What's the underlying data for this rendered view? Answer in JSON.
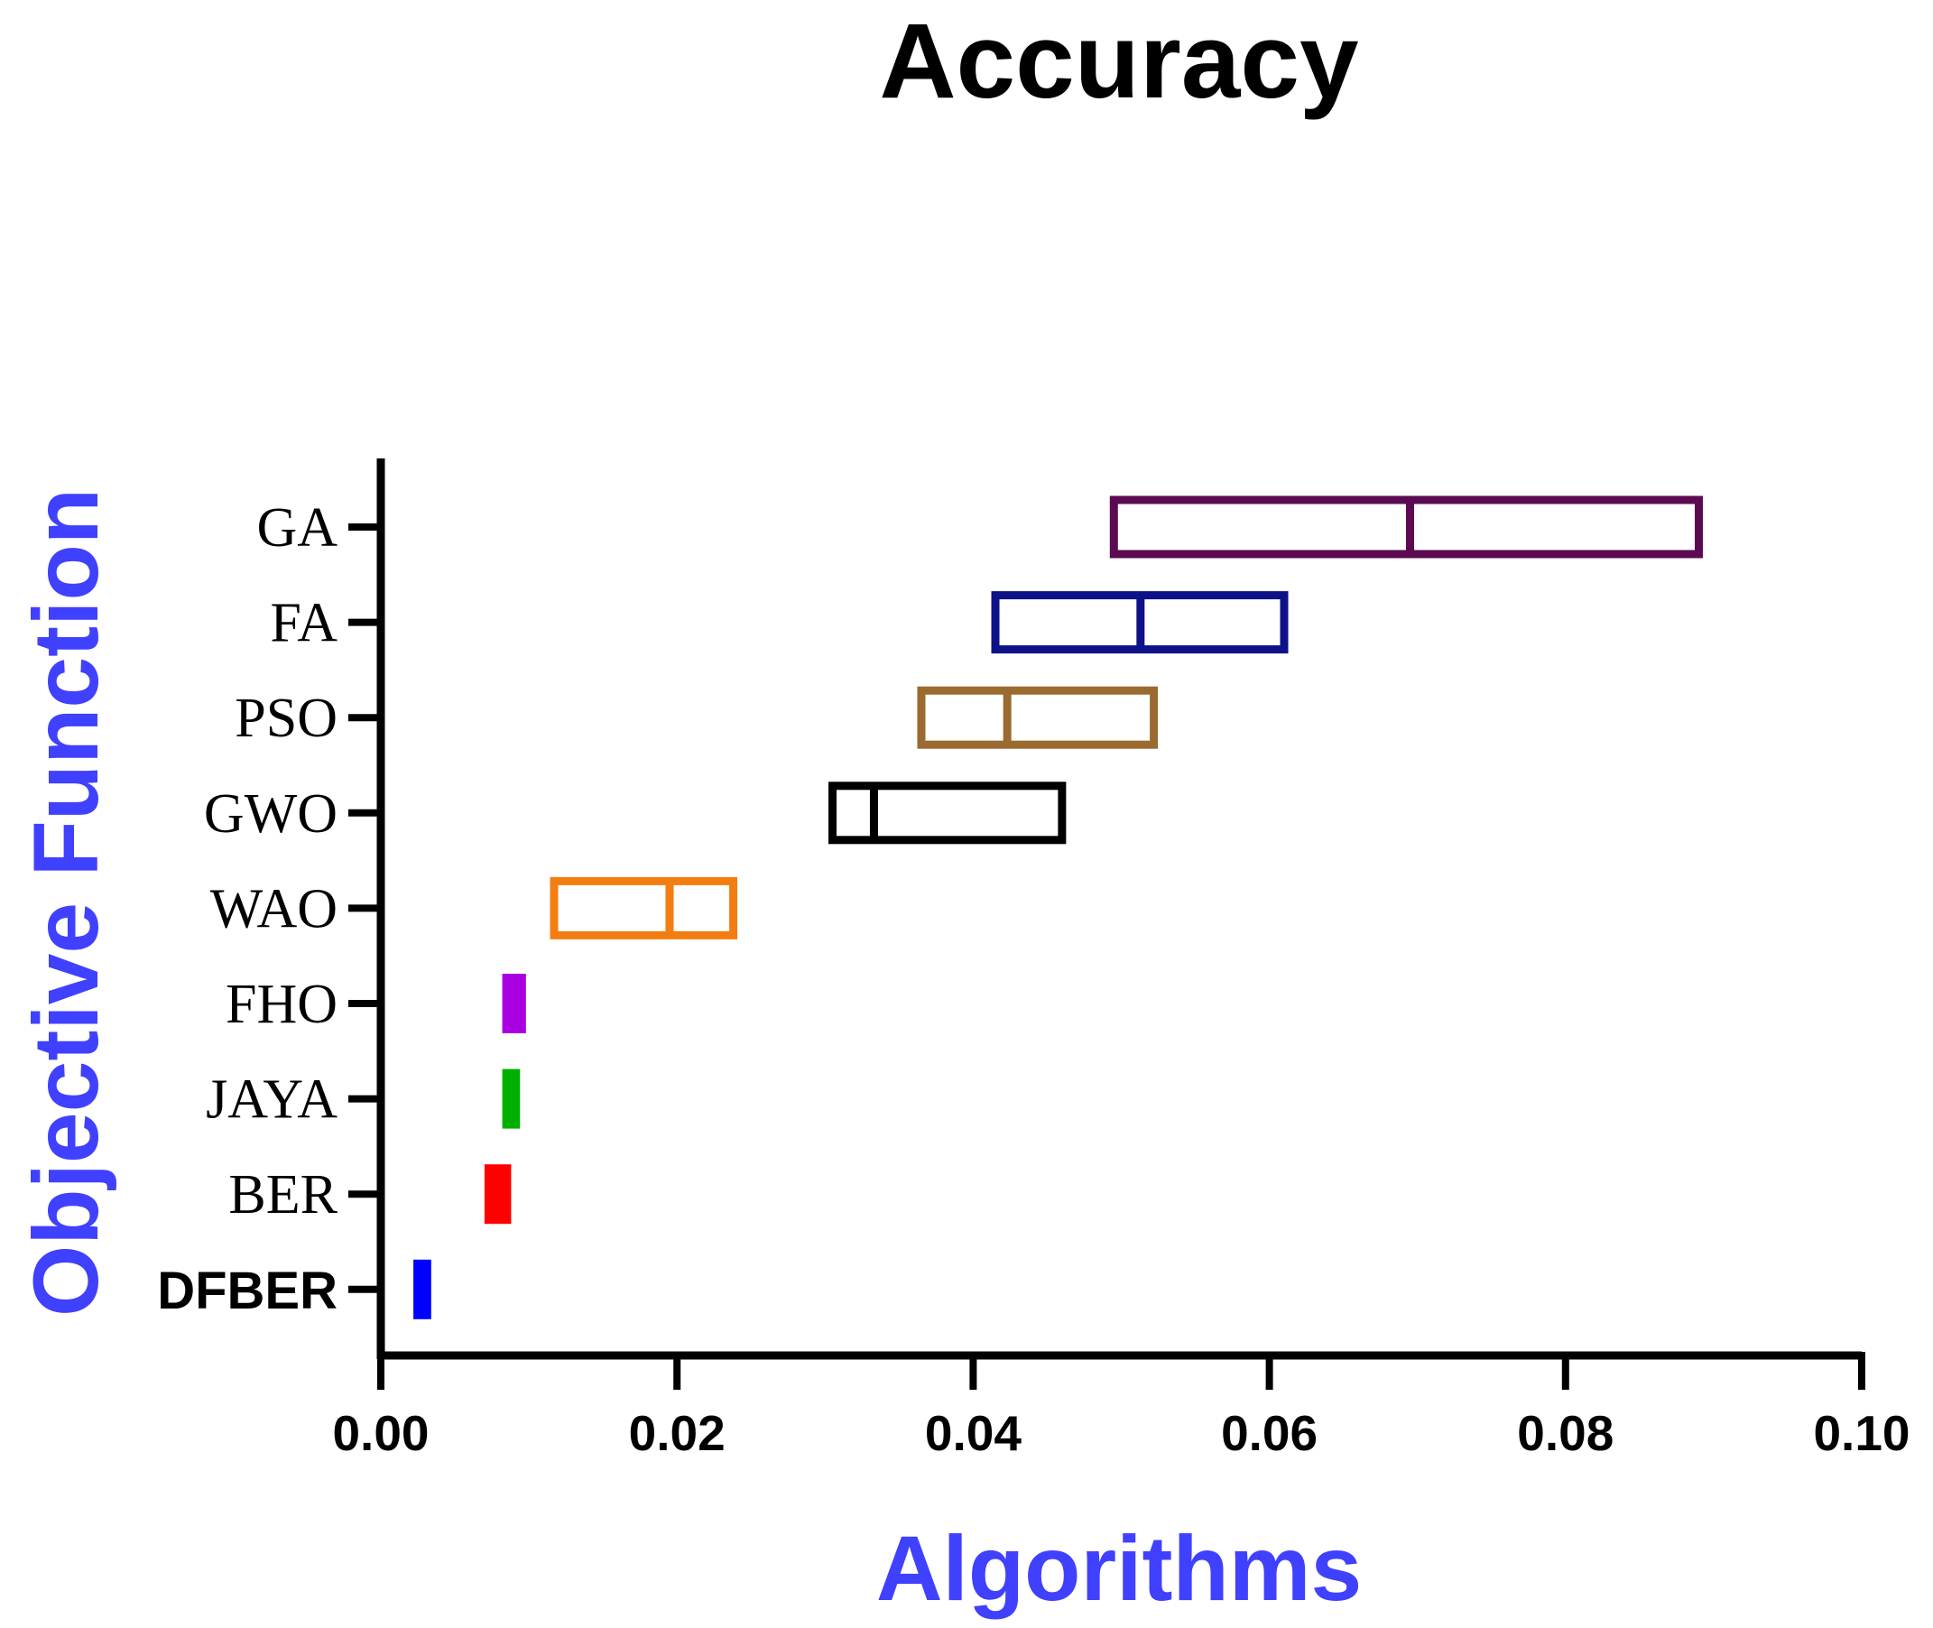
{
  "chart_data": {
    "type": "box",
    "orientation": "horizontal",
    "title": "Accuracy",
    "xlabel": "Algorithms",
    "ylabel": "Objective Function",
    "xlim": [
      0,
      0.1
    ],
    "x_ticks": [
      "0.00",
      "0.02",
      "0.04",
      "0.06",
      "0.08",
      "0.10"
    ],
    "x_tick_values": [
      0,
      0.02,
      0.04,
      0.06,
      0.08,
      0.1
    ],
    "categories": [
      "GA",
      "FA",
      "PSO",
      "GWO",
      "WAO",
      "FHO",
      "JAYA",
      "BER",
      "DFBER"
    ],
    "series": [
      {
        "name": "GA",
        "q1": 0.0495,
        "median": 0.0695,
        "q3": 0.089,
        "color": "#5c0a52",
        "filled": false
      },
      {
        "name": "FA",
        "q1": 0.0415,
        "median": 0.0513,
        "q3": 0.061,
        "color": "#0d1288",
        "filled": false
      },
      {
        "name": "PSO",
        "q1": 0.0365,
        "median": 0.0423,
        "q3": 0.0522,
        "color": "#9a6a2e",
        "filled": false
      },
      {
        "name": "GWO",
        "q1": 0.0305,
        "median": 0.0333,
        "q3": 0.046,
        "color": "#000000",
        "filled": false
      },
      {
        "name": "WAO",
        "q1": 0.0117,
        "median": 0.0195,
        "q3": 0.0238,
        "color": "#f47d11",
        "filled": false
      },
      {
        "name": "FHO",
        "q1": 0.0082,
        "median": 0.009,
        "q3": 0.0098,
        "color": "#a800e0",
        "filled": true
      },
      {
        "name": "JAYA",
        "q1": 0.0082,
        "median": 0.0087,
        "q3": 0.0094,
        "color": "#00b000",
        "filled": true
      },
      {
        "name": "BER",
        "q1": 0.007,
        "median": 0.0077,
        "q3": 0.0088,
        "color": "#ff0000",
        "filled": true
      },
      {
        "name": "DFBER",
        "q1": 0.0022,
        "median": 0.0027,
        "q3": 0.0034,
        "color": "#0000ff",
        "filled": true
      }
    ],
    "axis_label_color": "#4040ff",
    "grid": false
  }
}
